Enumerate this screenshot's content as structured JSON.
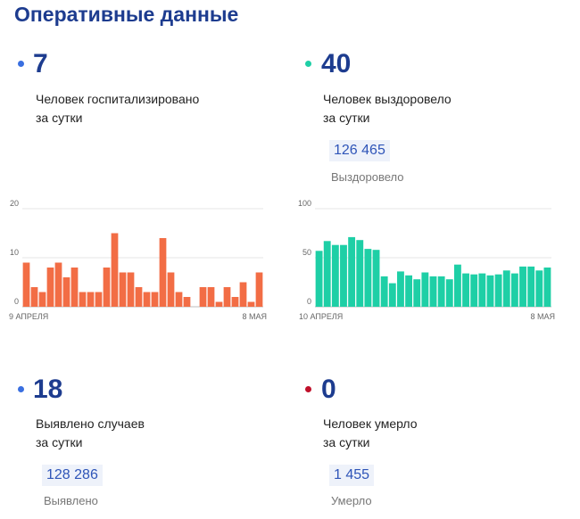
{
  "page_title": "Оперативные данные",
  "hospitalized": {
    "value": "7",
    "label_line1": "Человек госпитализировано",
    "label_line2": "за сутки",
    "dot_color": "#3a6fe0"
  },
  "recovered": {
    "value": "40",
    "label_line1": "Человек выздоровело",
    "label_line2": "за сутки",
    "total": "126 465",
    "total_label": "Выздоровело",
    "dot_color": "#1ecfa6"
  },
  "detected": {
    "value": "18",
    "label_line1": "Выявлено случаев",
    "label_line2": "за сутки",
    "total": "128 286",
    "total_label": "Выявлено",
    "dot_color": "#3a6fe0"
  },
  "died": {
    "value": "0",
    "label_line1": "Человек умерло",
    "label_line2": "за сутки",
    "total": "1 455",
    "total_label": "Умерло",
    "dot_color": "#c0102a"
  },
  "chart_data": [
    {
      "type": "bar",
      "color": "#f26d45",
      "yticks": [
        "0",
        "10",
        "20"
      ],
      "ylim": [
        0,
        20
      ],
      "x_start_label": "9 АПРЕЛЯ",
      "x_end_label": "8 МАЯ",
      "values": [
        9,
        4,
        3,
        8,
        9,
        6,
        8,
        3,
        3,
        3,
        8,
        15,
        7,
        7,
        4,
        3,
        3,
        14,
        7,
        3,
        2,
        0,
        4,
        4,
        1,
        4,
        2,
        5,
        1,
        7
      ],
      "grid": true
    },
    {
      "type": "bar",
      "color": "#1ecfa6",
      "yticks": [
        "0",
        "50",
        "100"
      ],
      "ylim": [
        0,
        100
      ],
      "x_start_label": "10 АПРЕЛЯ",
      "x_end_label": "8 МАЯ",
      "values": [
        57,
        67,
        63,
        63,
        71,
        68,
        59,
        58,
        31,
        24,
        36,
        32,
        28,
        35,
        31,
        31,
        28,
        43,
        34,
        33,
        34,
        32,
        33,
        37,
        34,
        41,
        41,
        37,
        40
      ],
      "grid": true
    }
  ]
}
